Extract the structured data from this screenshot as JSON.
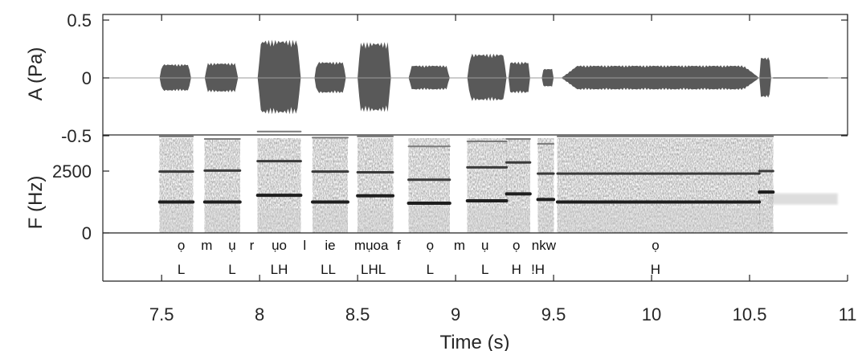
{
  "chart_data": [
    {
      "type": "line",
      "panel": "waveform",
      "ylabel": "A (Pa)",
      "xlim": [
        7.2,
        11
      ],
      "ylim": [
        -0.5,
        0.5
      ],
      "yticks": [
        -0.5,
        0,
        0.5
      ],
      "ytick_labels": [
        "-0.5",
        "0",
        "0.5"
      ],
      "series": [
        {
          "envelope_segments": [
            {
              "start": 7.49,
              "end": 7.65,
              "amp": 0.12
            },
            {
              "start": 7.72,
              "end": 7.89,
              "amp": 0.13
            },
            {
              "start": 7.99,
              "end": 8.21,
              "amp": 0.33
            },
            {
              "start": 8.28,
              "end": 8.44,
              "amp": 0.14
            },
            {
              "start": 8.5,
              "end": 8.67,
              "amp": 0.31
            },
            {
              "start": 8.76,
              "end": 8.97,
              "amp": 0.11
            },
            {
              "start": 9.06,
              "end": 9.26,
              "amp": 0.21
            },
            {
              "start": 9.27,
              "end": 9.38,
              "amp": 0.14
            },
            {
              "start": 9.44,
              "end": 9.5,
              "amp": 0.08
            },
            {
              "start": 9.54,
              "end": 10.55,
              "amp": 0.11
            },
            {
              "start": 10.55,
              "end": 10.61,
              "amp": 0.18
            }
          ]
        }
      ]
    },
    {
      "type": "heatmap",
      "panel": "spectrogram",
      "xlabel": "Time (s)",
      "ylabel": "F (Hz)",
      "xlim": [
        7.2,
        11
      ],
      "ylim": [
        0,
        5000
      ],
      "yticks": [
        0,
        2500
      ],
      "ytick_labels": [
        "0",
        "2500"
      ],
      "xticks": [
        7.5,
        8,
        8.5,
        9,
        9.5,
        10,
        10.5,
        11
      ],
      "xtick_labels": [
        "7.5",
        "8",
        "8.5",
        "9",
        "9.5",
        "10",
        "10.5",
        "11"
      ],
      "formant_segments": [
        {
          "start": 7.49,
          "end": 7.66,
          "freqs": [
            1250,
            2480,
            3900
          ]
        },
        {
          "start": 7.72,
          "end": 7.9,
          "freqs": [
            1250,
            2520,
            3800
          ]
        },
        {
          "start": 7.99,
          "end": 8.21,
          "freqs": [
            1520,
            2900,
            4100
          ]
        },
        {
          "start": 8.27,
          "end": 8.45,
          "freqs": [
            1250,
            2480,
            3850
          ]
        },
        {
          "start": 8.5,
          "end": 8.68,
          "freqs": [
            1500,
            2450,
            3900
          ]
        },
        {
          "start": 8.76,
          "end": 8.97,
          "freqs": [
            1200,
            2150,
            3500
          ]
        },
        {
          "start": 9.06,
          "end": 9.26,
          "freqs": [
            1300,
            2650,
            3700
          ]
        },
        {
          "start": 9.26,
          "end": 9.38,
          "freqs": [
            1580,
            2850,
            3800
          ]
        },
        {
          "start": 9.42,
          "end": 9.5,
          "freqs": [
            1350,
            2400,
            3600
          ]
        },
        {
          "start": 9.52,
          "end": 10.55,
          "freqs": [
            1250,
            2400,
            3900
          ]
        },
        {
          "start": 10.55,
          "end": 10.62,
          "freqs": [
            1650,
            2500,
            3900
          ]
        }
      ],
      "segment_labels": [
        {
          "t": 7.6,
          "text": "ọ"
        },
        {
          "t": 7.73,
          "text": "m"
        },
        {
          "t": 7.86,
          "text": "ụ"
        },
        {
          "t": 7.96,
          "text": "r"
        },
        {
          "t": 8.1,
          "text": "ụo"
        },
        {
          "t": 8.23,
          "text": "l"
        },
        {
          "t": 8.36,
          "text": "ie"
        },
        {
          "t": 8.57,
          "text": "mụoa"
        },
        {
          "t": 8.71,
          "text": "f"
        },
        {
          "t": 8.87,
          "text": "ọ"
        },
        {
          "t": 9.02,
          "text": "m"
        },
        {
          "t": 9.15,
          "text": "ụ"
        },
        {
          "t": 9.31,
          "text": "ọ"
        },
        {
          "t": 9.45,
          "text": "nkw"
        },
        {
          "t": 10.02,
          "text": "ọ"
        }
      ],
      "tone_labels": [
        {
          "t": 7.6,
          "text": "L"
        },
        {
          "t": 7.86,
          "text": "L"
        },
        {
          "t": 8.1,
          "text": "LH"
        },
        {
          "t": 8.35,
          "text": "LL"
        },
        {
          "t": 8.58,
          "text": "LHL"
        },
        {
          "t": 8.87,
          "text": "L"
        },
        {
          "t": 9.15,
          "text": "L"
        },
        {
          "t": 9.31,
          "text": "H"
        },
        {
          "t": 9.42,
          "text": "!H"
        },
        {
          "t": 10.02,
          "text": "H"
        }
      ]
    }
  ]
}
